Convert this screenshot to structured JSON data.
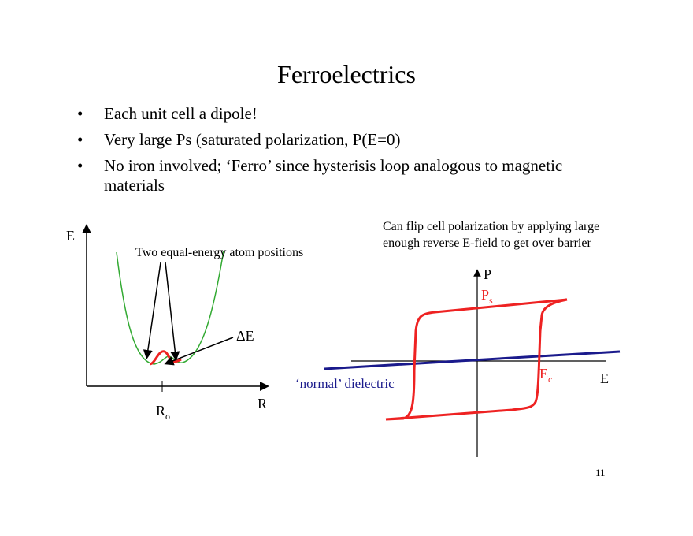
{
  "title": "Ferroelectrics",
  "bullets": [
    "Each unit cell a dipole!",
    "Very large Ps (saturated polarization, P(E=0)",
    "No iron involved; ‘Ferro’ since hysterisis loop analogous to magnetic materials"
  ],
  "bullet_glyph": "•",
  "left_diagram": {
    "axis_y_label": "E",
    "axis_x_label": "R",
    "tick_label_main": "R",
    "tick_label_sub": "o",
    "positions_label": "Two equal-energy atom positions",
    "barrier_label": "ΔE",
    "curve_color": "#33aa33",
    "barrier_color": "#ee2222"
  },
  "right_diagram": {
    "note": "Can flip cell polarization by applying large enough reverse E-field to get over barrier",
    "axis_y_label": "P",
    "axis_x_label": "E",
    "ps_main": "P",
    "ps_sub": "s",
    "ec_main": "E",
    "ec_sub": "c",
    "dielectric_label": "‘normal’ dielectric",
    "loop_color": "#ee2222",
    "dielectric_color": "#1a1a8c"
  },
  "page_number": "11"
}
